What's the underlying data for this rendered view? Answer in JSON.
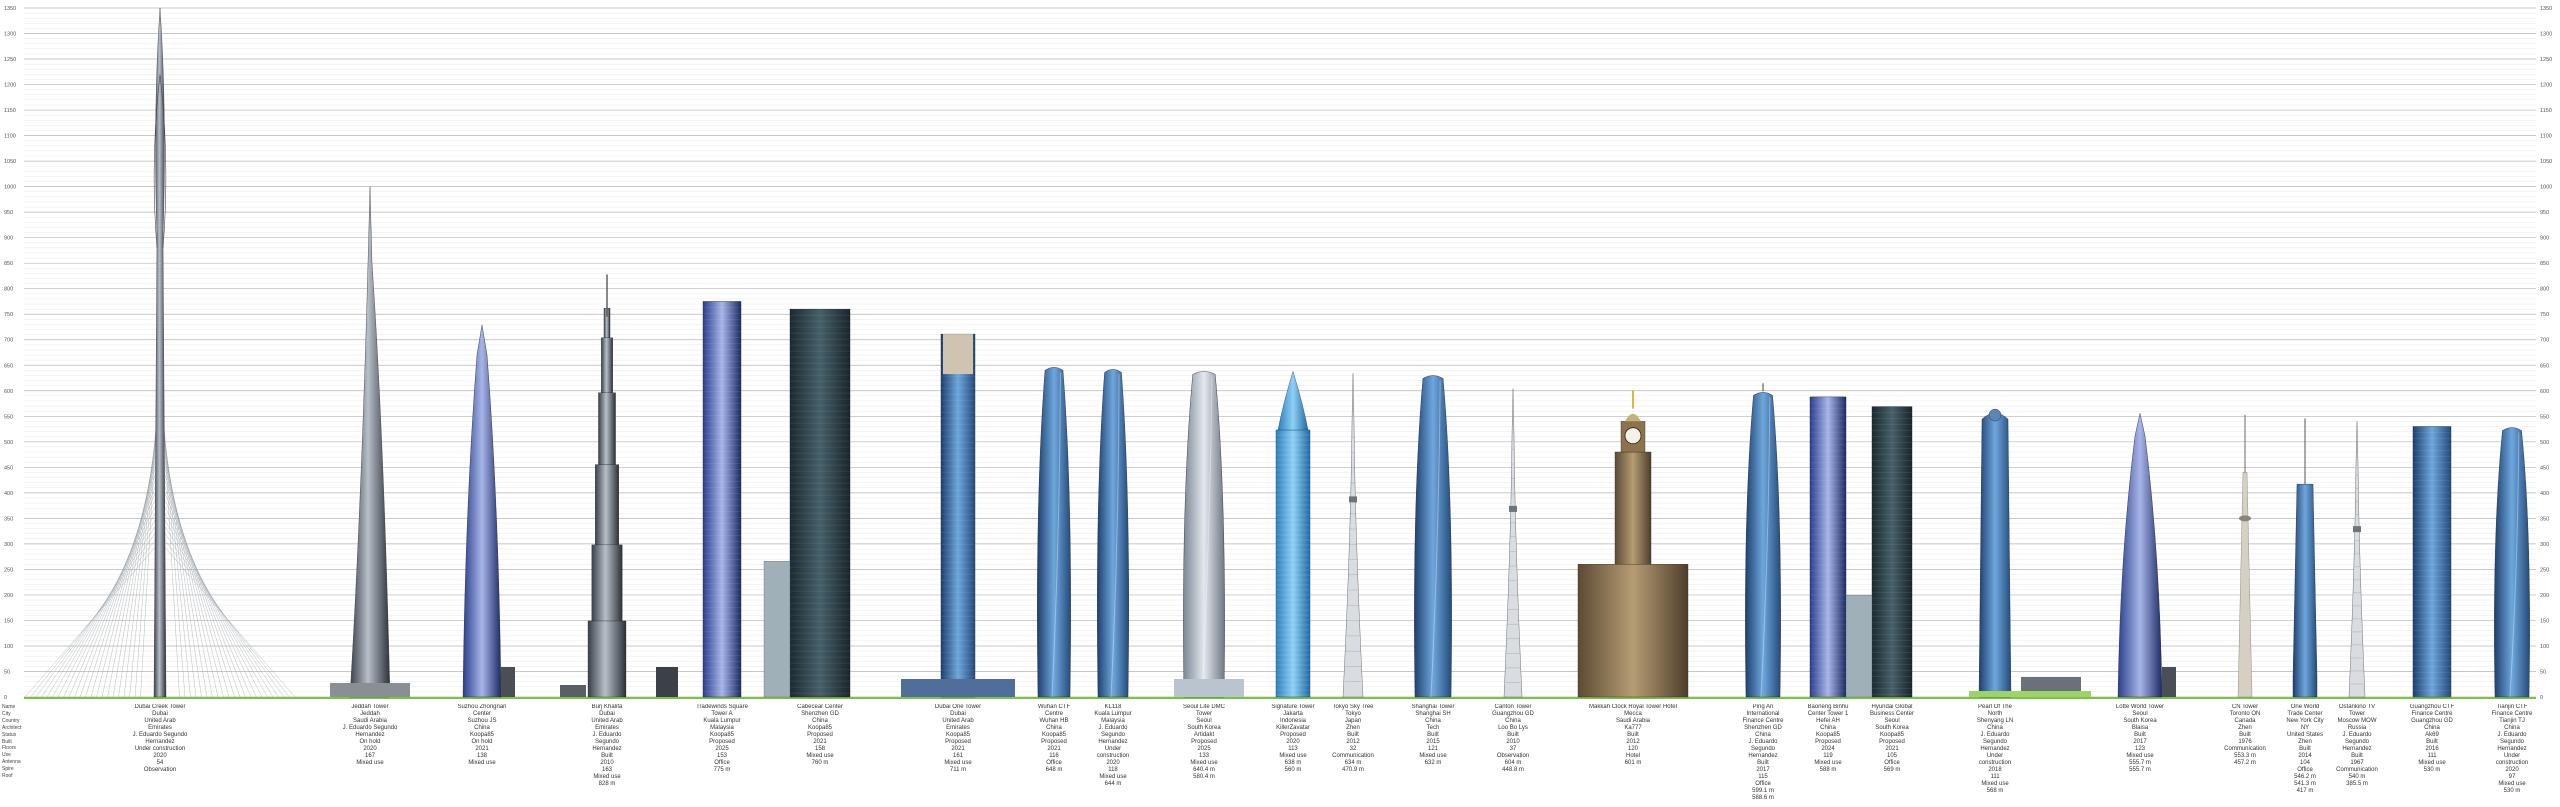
{
  "chart_data": {
    "type": "bar",
    "ylim": [
      0,
      1350
    ],
    "yticks": [
      0,
      50,
      100,
      150,
      200,
      250,
      300,
      350,
      400,
      450,
      500,
      550,
      600,
      650,
      700,
      750,
      800,
      850,
      900,
      950,
      1000,
      1050,
      1100,
      1150,
      1200,
      1250,
      1300,
      1350
    ],
    "grid": true,
    "row_labels": [
      "Name",
      "City",
      "Country",
      "Architect",
      "Status",
      "Built",
      "Floors",
      "Use",
      "Antenna",
      "Spire",
      "Roof"
    ],
    "buildings": [
      {
        "name": "Dubai Creek Tower",
        "city": "Dubai",
        "country": "United Arab Emirates",
        "architect": "J. Eduardo Segundo Hernandez",
        "status": "Under construction",
        "built": "2020",
        "floors": "54",
        "use": "Observation",
        "antenna": "",
        "spire": "",
        "roof": "",
        "height": 1350,
        "style": "creek",
        "center": 160,
        "width": 40
      },
      {
        "name": "Jeddah Tower",
        "city": "Jeddah",
        "country": "Saudi Arabia",
        "architect": "J. Eduardo Segundo Hernandez",
        "status": "On hold",
        "built": "2020",
        "floors": "167",
        "use": "Mixed use",
        "antenna": "",
        "spire": "",
        "roof": "",
        "height": 1000,
        "style": "needle",
        "center": 370,
        "width": 40
      },
      {
        "name": "Suzhou Zhongnan Center",
        "city": "Suzhou JS",
        "country": "China",
        "architect": "Koopa85",
        "status": "On hold",
        "built": "2021",
        "floors": "138",
        "use": "Mixed use",
        "antenna": "",
        "spire": "",
        "roof": "",
        "height": 729,
        "style": "tapered",
        "center": 482,
        "width": 38
      },
      {
        "name": "Burj Khalifa",
        "city": "Dubai",
        "country": "United Arab Emirates",
        "architect": "J. Eduardo Segundo Hernandez",
        "status": "Built",
        "built": "2010",
        "floors": "163",
        "use": "Mixed use",
        "antenna": "",
        "spire": "",
        "roof": "828 m",
        "height": 828,
        "style": "burj",
        "center": 607,
        "width": 38
      },
      {
        "name": "Tradewinds Square Tower A",
        "city": "Kuala Lumpur",
        "country": "Malaysia",
        "architect": "Koopa85",
        "status": "Proposed",
        "built": "2025",
        "floors": "153",
        "use": "Office",
        "antenna": "",
        "spire": "",
        "roof": "775 m",
        "height": 775,
        "style": "box",
        "center": 722,
        "width": 38
      },
      {
        "name": "Cabecear Center",
        "city": "Shenzhen GD",
        "country": "China",
        "architect": "Koopa85",
        "status": "Proposed",
        "built": "2021",
        "floors": "158",
        "use": "Mixed use",
        "antenna": "",
        "spire": "",
        "roof": "760 m",
        "height": 760,
        "style": "dark",
        "center": 820,
        "width": 60
      },
      {
        "name": "Dubai One Tower",
        "city": "Dubai",
        "country": "United Arab Emirates",
        "architect": "Koopa85",
        "status": "Proposed",
        "built": "2021",
        "floors": "161",
        "use": "Mixed use",
        "antenna": "",
        "spire": "",
        "roof": "711 m",
        "height": 711,
        "style": "glass",
        "center": 958,
        "width": 34
      },
      {
        "name": "Wuhan CTF Centre",
        "city": "Wuhan HB",
        "country": "China",
        "architect": "Koopa85",
        "status": "Proposed",
        "built": "2021",
        "floors": "116",
        "use": "Office",
        "antenna": "",
        "spire": "",
        "roof": "648 m",
        "height": 648,
        "style": "curve",
        "center": 1054,
        "width": 32
      },
      {
        "name": "KL118",
        "city": "Kuala Lumpur",
        "country": "Malaysia",
        "architect": "J. Eduardo Segundo Hernandez",
        "status": "Under construction",
        "built": "2020",
        "floors": "118",
        "use": "Mixed use",
        "antenna": "",
        "spire": "",
        "roof": "644 m",
        "height": 644,
        "style": "curve",
        "center": 1113,
        "width": 30
      },
      {
        "name": "Seoul Lite DMC Tower",
        "city": "Seoul",
        "country": "South Korea",
        "architect": "Artidakt",
        "status": "Proposed",
        "built": "2025",
        "floors": "133",
        "use": "Mixed use",
        "antenna": "",
        "spire": "640.4 m",
        "roof": "580.4 m",
        "height": 640,
        "style": "twist",
        "center": 1204,
        "width": 40
      },
      {
        "name": "Signature Tower",
        "city": "Jakarta",
        "country": "Indonesia",
        "architect": "KillerZavatar",
        "status": "Proposed",
        "built": "2020",
        "floors": "113",
        "use": "Mixed use",
        "antenna": "",
        "spire": "638 m",
        "roof": "560 m",
        "height": 638,
        "style": "sig",
        "center": 1293,
        "width": 34
      },
      {
        "name": "Tokyo Sky Tree",
        "city": "Tokyo",
        "country": "Japan",
        "architect": "Zhen",
        "status": "Built",
        "built": "2012",
        "floors": "32",
        "use": "Communication",
        "antenna": "634 m",
        "spire": "",
        "roof": "470.9 m",
        "height": 634,
        "style": "lattice",
        "center": 1353,
        "width": 20
      },
      {
        "name": "Shanghai Tower",
        "city": "Shanghai SH",
        "country": "China",
        "architect": "Tech",
        "status": "Built",
        "built": "2015",
        "floors": "121",
        "use": "Mixed use",
        "antenna": "",
        "spire": "",
        "roof": "632 m",
        "height": 632,
        "style": "curve",
        "center": 1433,
        "width": 36
      },
      {
        "name": "Canton Tower",
        "city": "Guangzhou GD",
        "country": "China",
        "architect": "Loo Bo Lys",
        "status": "Built",
        "built": "2010",
        "floors": "37",
        "use": "Observation",
        "antenna": "",
        "spire": "604 m",
        "roof": "448.8 m",
        "height": 604,
        "style": "lattice",
        "center": 1513,
        "width": 18
      },
      {
        "name": "Makkah Clock Royal Tower Hotel",
        "city": "Mecca",
        "country": "Saudi Arabia",
        "architect": "Ka777",
        "status": "Built",
        "built": "2012",
        "floors": "120",
        "use": "Hotel",
        "antenna": "",
        "spire": "",
        "roof": "601 m",
        "height": 601,
        "style": "clock",
        "center": 1633,
        "width": 110
      },
      {
        "name": "Ping An International Finance Centre",
        "city": "Shenzhen GD",
        "country": "China",
        "architect": "J. Eduardo Segundo Hernandez",
        "status": "Built",
        "built": "2017",
        "floors": "115",
        "use": "Office",
        "antenna": "",
        "spire": "599.1 m",
        "roof": "588.6 m",
        "height": 599,
        "style": "ping",
        "center": 1763,
        "width": 34
      },
      {
        "name": "Baoneng Binhu Center Tower 1",
        "city": "Hefei AH",
        "country": "China",
        "architect": "Koopa85",
        "status": "Proposed",
        "built": "2024",
        "floors": "119",
        "use": "Mixed use",
        "antenna": "",
        "spire": "",
        "roof": "588 m",
        "height": 588,
        "style": "box",
        "center": 1828,
        "width": 36
      },
      {
        "name": "Hyundai Global Business Center",
        "city": "Seoul",
        "country": "South Korea",
        "architect": "Koopa85",
        "status": "Proposed",
        "built": "2021",
        "floors": "105",
        "use": "Office",
        "antenna": "",
        "spire": "",
        "roof": "569 m",
        "height": 569,
        "style": "dark",
        "center": 1892,
        "width": 40
      },
      {
        "name": "Pearl Of The North",
        "city": "Shenyang LN",
        "country": "China",
        "architect": "J. Eduardo Segundo Hernandez",
        "status": "Under construction",
        "built": "2018",
        "floors": "111",
        "use": "Mixed use",
        "antenna": "",
        "spire": "",
        "roof": "568 m",
        "height": 568,
        "style": "pearl",
        "center": 1995,
        "width": 32
      },
      {
        "name": "Lotte World Tower",
        "city": "Seoul",
        "country": "South Korea",
        "architect": "Blaisa",
        "status": "Built",
        "built": "2017",
        "floors": "123",
        "use": "Mixed use",
        "antenna": "",
        "spire": "555.7 m",
        "roof": "555.7 m",
        "height": 556,
        "style": "tapered",
        "center": 2140,
        "width": 44
      },
      {
        "name": "CN Tower",
        "city": "Toronto ON",
        "country": "Canada",
        "architect": "Zhen",
        "status": "Built",
        "built": "1976",
        "floors": "",
        "use": "Communication",
        "antenna": "553.3 m",
        "spire": "",
        "roof": "457.2 m",
        "height": 553,
        "style": "cn",
        "center": 2245,
        "width": 14
      },
      {
        "name": "One World Trade Center",
        "city": "New York City NY",
        "country": "United States",
        "architect": "Zhen",
        "status": "Built",
        "built": "2014",
        "floors": "104",
        "use": "Office",
        "antenna": "546.2 m",
        "spire": "541.3 m",
        "roof": "417 m",
        "height": 546,
        "style": "owtc",
        "center": 2305,
        "width": 24
      },
      {
        "name": "Ostankino TV Tower",
        "city": "Moscow MOW",
        "country": "Russia",
        "architect": "J. Eduardo Segundo Hernandez",
        "status": "Built",
        "built": "1967",
        "floors": "",
        "use": "Communication",
        "antenna": "540 m",
        "spire": "",
        "roof": "385.5 m",
        "height": 540,
        "style": "lattice",
        "center": 2357,
        "width": 16
      },
      {
        "name": "Guangzhou CTF Finance Centre",
        "city": "Guangzhou GD",
        "country": "China",
        "architect": "Ak69",
        "status": "Built",
        "built": "2016",
        "floors": "111",
        "use": "Mixed use",
        "antenna": "",
        "spire": "",
        "roof": "530 m",
        "height": 530,
        "style": "glass",
        "center": 2432,
        "width": 38
      },
      {
        "name": "Tianjin CTF Finance Centre",
        "city": "Tianjin TJ",
        "country": "China",
        "architect": "J. Eduardo Segundo Hernandez",
        "status": "Under construction",
        "built": "2020",
        "floors": "97",
        "use": "Mixed use",
        "antenna": "",
        "spire": "",
        "roof": "530 m",
        "height": 530,
        "style": "curve",
        "center": 2512,
        "width": 34
      }
    ]
  }
}
